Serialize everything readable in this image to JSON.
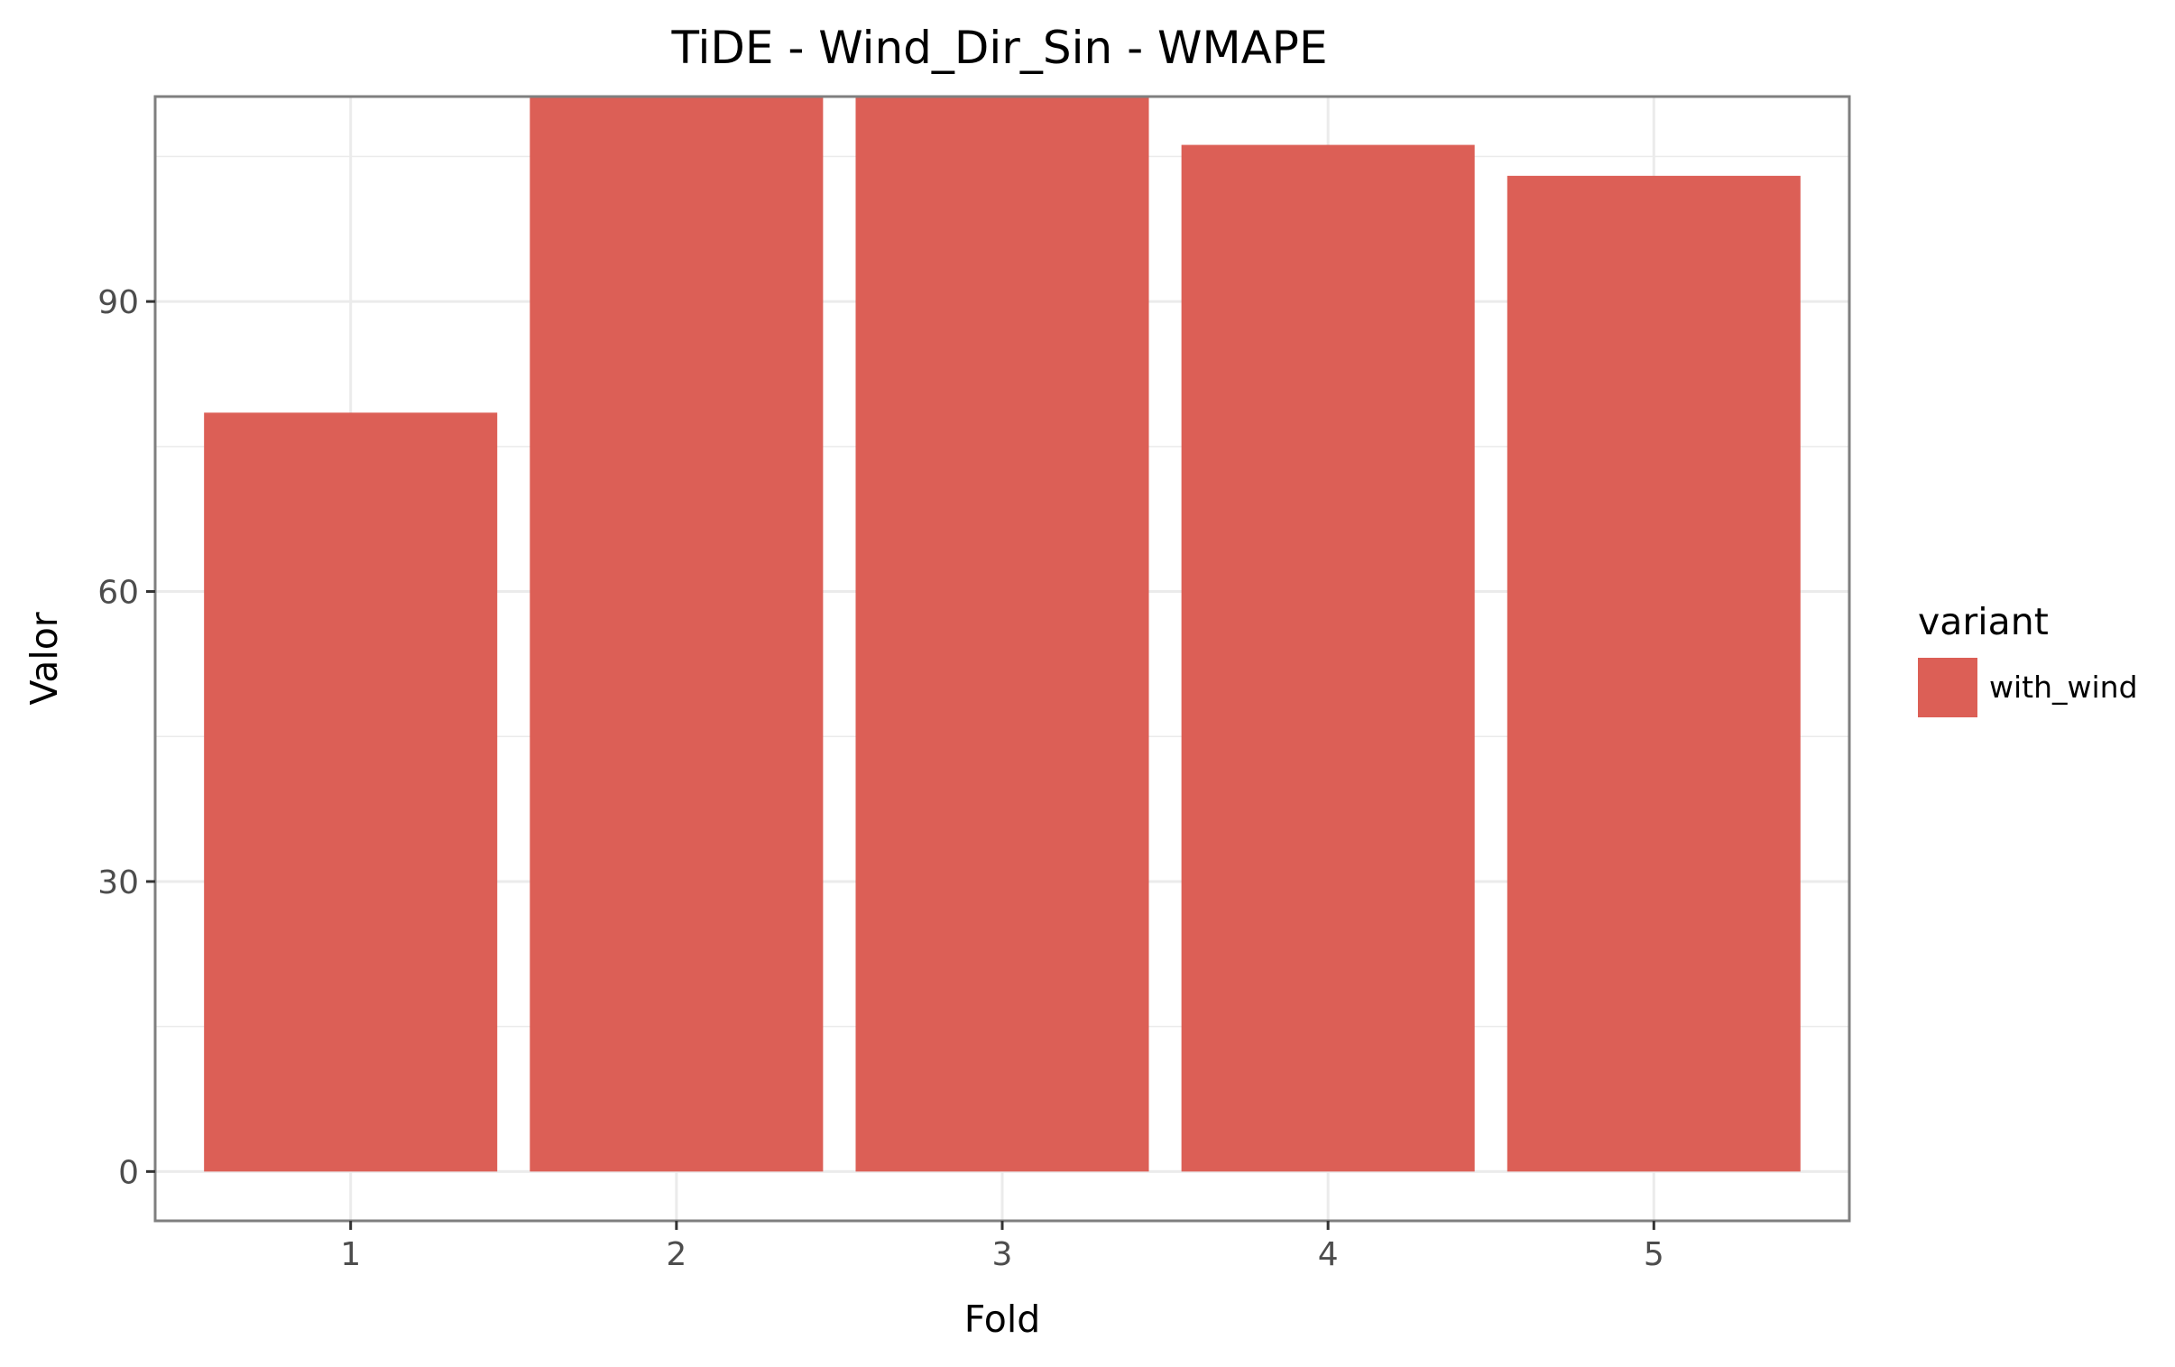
{
  "chart_data": {
    "type": "bar",
    "title": "TiDE - Wind_Dir_Sin - WMAPE",
    "xlabel": "Fold",
    "ylabel": "Valor",
    "categories": [
      "1",
      "2",
      "3",
      "4",
      "5"
    ],
    "series": [
      {
        "name": "with_wind",
        "values": [
          78.5,
          112.0,
          112.0,
          106.2,
          103.0
        ],
        "color": "#dc5f56"
      }
    ],
    "ylim": [
      -5.1,
      111.2
    ],
    "yticks": [
      0,
      30,
      60,
      90
    ],
    "ytick_labels": [
      "0",
      "30",
      "60",
      "90"
    ],
    "grid": true,
    "legend": {
      "title": "variant",
      "position": "right"
    },
    "colors": {
      "panel_background": "#ffffff",
      "grid": "#ebebeb",
      "panel_border": "#7f7f7f"
    }
  }
}
